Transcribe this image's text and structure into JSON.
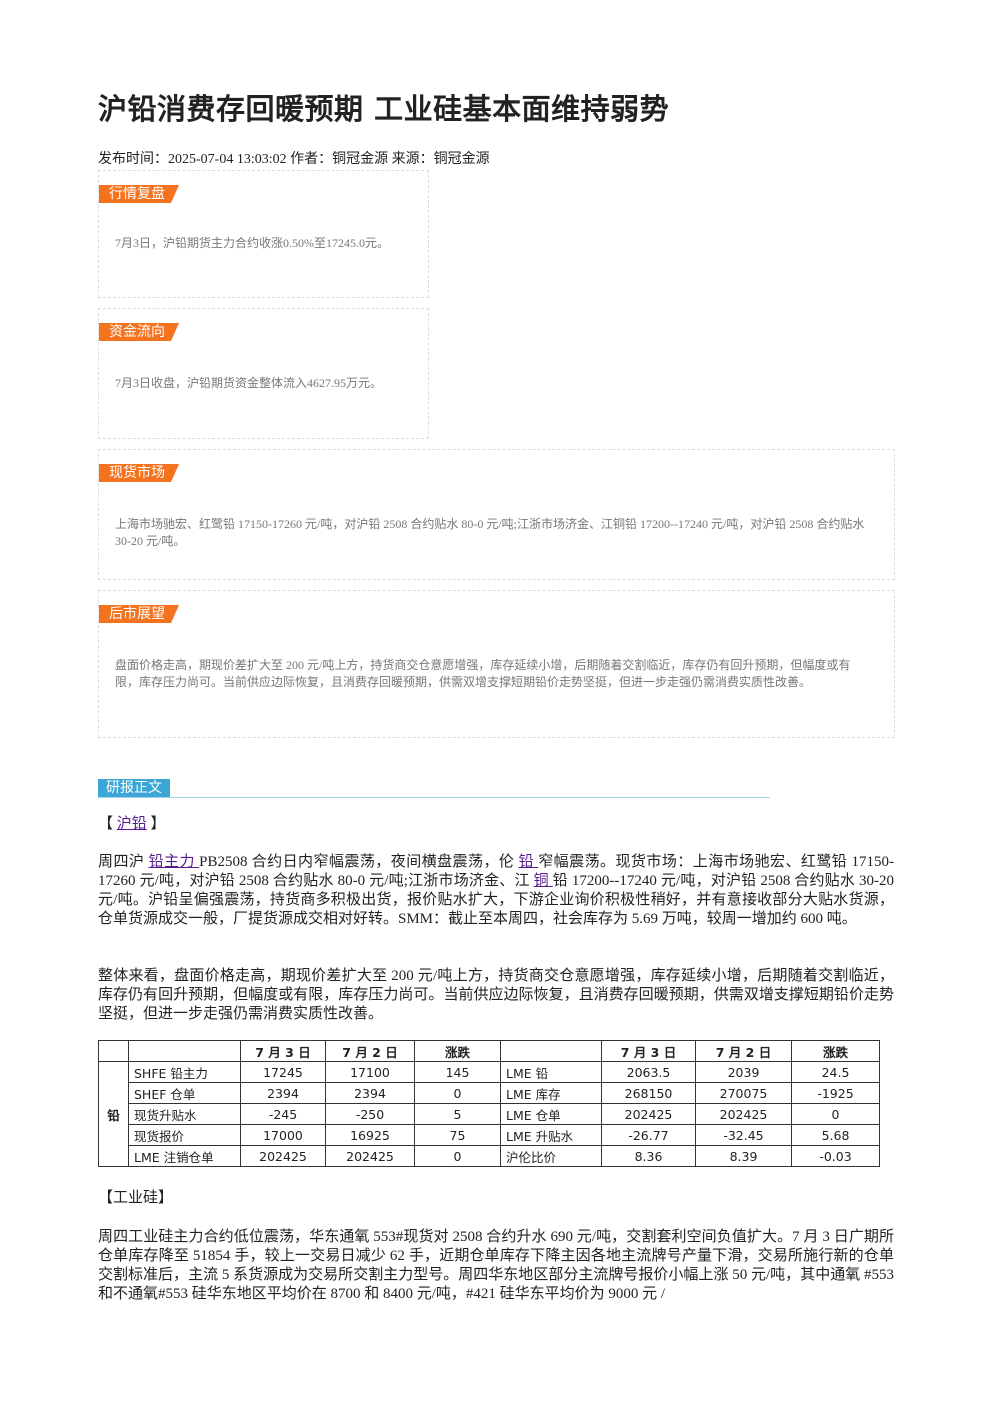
{
  "header": {
    "title": "沪铅消费存回暖预期 工业硅基本面维持弱势",
    "meta": "发布时间：2025-07-04 13:03:02 作者：铜冠金源 来源：铜冠金源"
  },
  "sections": [
    {
      "tag": "行情复盘",
      "text": "7月3日，沪铅期货主力合约收涨0.50%至17245.0元。"
    },
    {
      "tag": "资金流向",
      "text": "7月3日收盘，沪铅期货资金整体流入4627.95万元。"
    },
    {
      "tag": "现货市场",
      "text": "上海市场驰宏、红鹭铅 17150-17260 元/吨，对沪铅 2508 合约贴水 80-0 元/吨;江浙市场济金、江铜铅 17200--17240 元/吨，对沪铅 2508 合约贴水 30-20 元/吨。"
    },
    {
      "tag": "后市展望",
      "text": "盘面价格走高，期现价差扩大至 200 元/吨上方，持货商交仓意愿增强，库存延续小增，后期随着交割临近，库存仍有回升预期，但幅度或有限，库存压力尚可。当前供应边际恢复，且消费存回暖预期，供需双增支撑短期铅价走势坚挺，但进一步走强仍需消费实质性改善。"
    }
  ],
  "report": {
    "tag": "研报正文",
    "lead_heading": [
      "【 ",
      "沪铅",
      " 】"
    ],
    "paragraph1": [
      "周四沪 ",
      "铅主力 ",
      "PB2508 合约日内窄幅震荡，夜间横盘震荡，伦 ",
      "铅 ",
      "窄幅震荡。现货市场：上海市场驰宏、红鹭铅 17150-17260 元/吨，对沪铅 2508 合约贴水 80-0 元/吨;江浙市场济金、江 ",
      "铜 ",
      "铅 17200--17240 元/吨，对沪铅 2508 合约贴水 30-20 元/吨。沪铅呈偏强震荡，持货商多积极出货，报价贴水扩大，下游企业询价积极性稍好，并有意接收部分大贴水货源，仓单货源成交一般，厂提货源成交相对好转。SMM：截止至本周四，社会库存为 5.69 万吨，较周一增加约 600 吨。"
    ],
    "paragraph2": "整体来看，盘面价格走高，期现价差扩大至 200 元/吨上方，持货商交仓意愿增强，库存延续小增，后期随着交割临近，库存仍有回升预期，但幅度或有限，库存压力尚可。当前供应边际恢复，且消费存回暖预期，供需双增支撑短期铅价走势坚挺，但进一步走强仍需消费实质性改善。",
    "table": {
      "label": "铅",
      "header_left": [
        "7 月 3 日",
        "7 月 2 日",
        "涨跌"
      ],
      "header_right": [
        "7 月 3 日",
        "7 月 2 日",
        "涨跌"
      ],
      "rows": [
        [
          "SHFE 铅主力",
          "17245",
          "17100",
          "145",
          "LME 铅",
          "2063.5",
          "2039",
          "24.5"
        ],
        [
          "SHEF 仓单",
          "2394",
          "2394",
          "0",
          "LME 库存",
          "268150",
          "270075",
          "-1925"
        ],
        [
          "现货升贴水",
          "-245",
          "-250",
          "5",
          "LME 仓单",
          "202425",
          "202425",
          "0"
        ],
        [
          "现货报价",
          "17000",
          "16925",
          "75",
          "LME 升贴水",
          "-26.77",
          "-32.45",
          "5.68"
        ],
        [
          "LME 注销仓单",
          "202425",
          "202425",
          "0",
          "沪伦比价",
          "8.36",
          "8.39",
          "-0.03"
        ]
      ]
    },
    "second_heading": "【工业硅】",
    "paragraph3": "周四工业硅主力合约低位震荡，华东通氧 553#现货对 2508 合约升水 690 元/吨，交割套利空间负值扩大。7 月 3 日广期所仓单库存降至 51854 手，较上一交易日减少 62 手，近期仓单库存下降主因各地主流牌号产量下滑，交易所施行新的仓单交割标准后，主流 5 系货源成为交易所交割主力型号。周四华东地区部分主流牌号报价小幅上涨 50 元/吨，其中通氧 #553 和不通氧#553 硅华东地区平均价在 8700 和 8400 元/吨，#421 硅华东平均价为 9000 元 /"
  }
}
